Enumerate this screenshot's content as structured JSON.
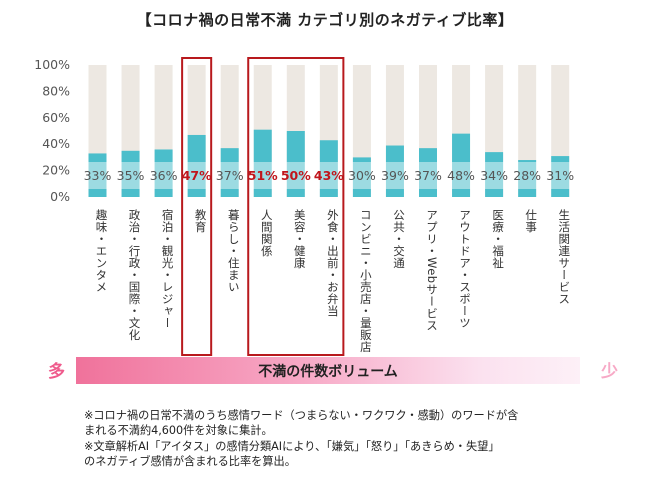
{
  "title": "【コロナ禍の日常不満 カテゴリ別のネガティブ比率】",
  "colors": {
    "bar": "#4bbecb",
    "background_bar": "#ede8e2",
    "highlight_box": "#b8191d",
    "highlight_label": "#c0161c",
    "label": "#555555",
    "volume_start": "#f0729b",
    "volume_end": "#fdf0f7",
    "many": "#ef5b8c",
    "few": "#f7a9c6"
  },
  "chart_data": {
    "type": "bar",
    "categories": [
      "趣味・エンタメ",
      "政治・行政・国際・文化",
      "宿泊・観光・レジャー",
      "教育",
      "暮らし・住まい",
      "人間関係",
      "美容・健康",
      "外食・出前・お弁当",
      "コンビニ・小売店・量販店",
      "公共・交通",
      "アプリ・Webサービス",
      "アウトドア・スポーツ",
      "医療・福祉",
      "仕事",
      "生活関連サービス"
    ],
    "values": [
      33,
      35,
      36,
      47,
      37,
      51,
      50,
      43,
      30,
      39,
      37,
      48,
      34,
      28,
      31
    ],
    "data_labels": [
      "33%",
      "35%",
      "36%",
      "47%",
      "37%",
      "51%",
      "50%",
      "43%",
      "30%",
      "39%",
      "37%",
      "48%",
      "34%",
      "28%",
      "31%"
    ],
    "highlighted_indices": [
      3,
      5,
      6,
      7
    ],
    "y_ticks": [
      "0%",
      "20%",
      "40%",
      "60%",
      "80%",
      "100%"
    ],
    "ylim": [
      0,
      100
    ],
    "grid": false,
    "legend": "none"
  },
  "volume": {
    "label": "不満の件数ボリューム",
    "many": "多",
    "few": "少"
  },
  "notes": [
    "※コロナ禍の日常不満のうち感情ワード（つまらない・ワクワク・感動）のワードが含",
    "まれる不満約4,600件を対象に集計。",
    "※文章解析AI「アイタス」の感情分類AIにより、「嫌気」「怒り」「あきらめ・失望」",
    "のネガティブ感情が含まれる比率を算出。"
  ]
}
